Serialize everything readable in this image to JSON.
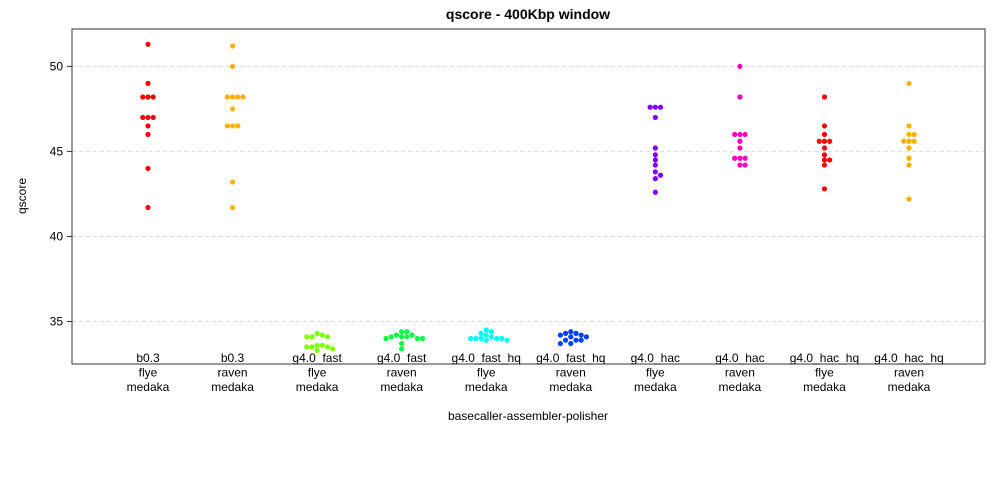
{
  "chart_data": {
    "type": "scatter",
    "subtype": "beeswarm",
    "title": "qscore - 400Kbp window",
    "xlabel": "basecaller-assembler-polisher",
    "ylabel": "qscore",
    "ylim": [
      32.5,
      52.2
    ],
    "yticks": [
      35,
      40,
      45,
      50
    ],
    "grid": true,
    "categories": [
      {
        "lines": [
          "b0.3",
          "flye",
          "medaka"
        ],
        "color": "#ff0000",
        "values": [
          51.3,
          49.0,
          48.2,
          48.2,
          48.2,
          47.0,
          47.0,
          47.0,
          46.5,
          46.0,
          44.0,
          41.7
        ]
      },
      {
        "lines": [
          "b0.3",
          "raven",
          "medaka"
        ],
        "color": "#ffb000",
        "values": [
          51.2,
          50.0,
          48.2,
          48.2,
          48.2,
          48.2,
          47.5,
          46.5,
          46.5,
          46.5,
          43.2,
          41.7
        ]
      },
      {
        "lines": [
          "g4.0_fast",
          "flye",
          "medaka"
        ],
        "color": "#80ff00",
        "values": [
          34.3,
          34.2,
          34.1,
          34.1,
          34.1,
          33.6,
          33.6,
          33.5,
          33.5,
          33.5,
          33.4,
          33.3
        ]
      },
      {
        "lines": [
          "g4.0_fast",
          "raven",
          "medaka"
        ],
        "color": "#00ff40",
        "values": [
          34.4,
          34.4,
          34.2,
          34.2,
          34.1,
          34.1,
          34.1,
          34.0,
          34.0,
          34.0,
          33.7,
          33.4
        ]
      },
      {
        "lines": [
          "g4.0_fast_hq",
          "flye",
          "medaka"
        ],
        "color": "#00ffff",
        "values": [
          34.5,
          34.4,
          34.3,
          34.2,
          34.1,
          34.0,
          34.0,
          34.0,
          34.0,
          34.0,
          33.9,
          33.9
        ]
      },
      {
        "lines": [
          "g4.0_fast_hq",
          "raven",
          "medaka"
        ],
        "color": "#0040ff",
        "values": [
          34.4,
          34.3,
          34.3,
          34.2,
          34.2,
          34.1,
          34.1,
          33.9,
          33.9,
          33.9,
          33.7,
          33.7
        ]
      },
      {
        "lines": [
          "g4.0_hac",
          "flye",
          "medaka"
        ],
        "color": "#8000ff",
        "values": [
          47.6,
          47.6,
          47.6,
          47.0,
          45.2,
          44.8,
          44.5,
          44.2,
          43.8,
          43.6,
          43.4,
          42.6
        ]
      },
      {
        "lines": [
          "g4.0_hac",
          "raven",
          "medaka"
        ],
        "color": "#ff00c0",
        "values": [
          50.0,
          48.2,
          46.0,
          46.0,
          46.0,
          45.6,
          45.2,
          44.6,
          44.6,
          44.6,
          44.2,
          44.2
        ]
      },
      {
        "lines": [
          "g4.0_hac_hq",
          "flye",
          "medaka"
        ],
        "color": "#ff0000",
        "values": [
          48.2,
          46.5,
          46.0,
          45.6,
          45.6,
          45.6,
          45.2,
          44.8,
          44.5,
          44.5,
          44.2,
          42.8
        ]
      },
      {
        "lines": [
          "g4.0_hac_hq",
          "raven",
          "medaka"
        ],
        "color": "#ffb000",
        "values": [
          49.0,
          46.5,
          46.0,
          46.0,
          45.6,
          45.6,
          45.6,
          45.2,
          44.6,
          44.2,
          42.2
        ]
      }
    ]
  }
}
